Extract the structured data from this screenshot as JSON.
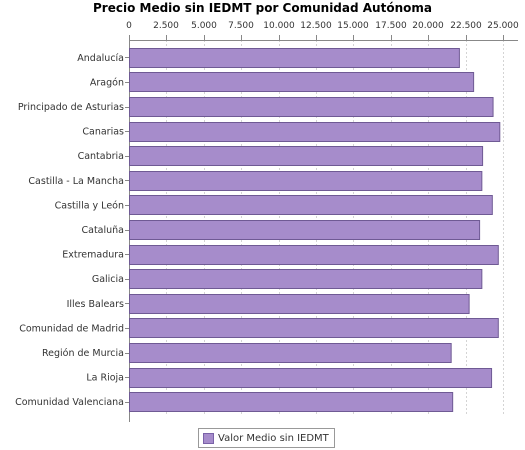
{
  "colors": {
    "bar_fill": "#a68ccb",
    "bar_stroke": "#6f5a94",
    "grid": "#d4d4d4",
    "axis": "#888888"
  },
  "chart_data": {
    "type": "bar",
    "orientation": "horizontal",
    "title": "Precio Medio sin IEDMT por Comunidad Autónoma",
    "xlabel": "",
    "ylabel": "",
    "xlim": [
      0,
      26000
    ],
    "x_ticks": [
      0,
      2500,
      5000,
      7500,
      10000,
      12500,
      15000,
      17500,
      20000,
      22500,
      25000
    ],
    "x_tick_labels": [
      "0",
      "2.500",
      "5.000",
      "7.500",
      "10.000",
      "12.500",
      "15.000",
      "17.500",
      "20.000",
      "22.500",
      "25.000"
    ],
    "x_axis_position": "top",
    "grid": true,
    "legend_position": "bottom",
    "categories": [
      "Andalucía",
      "Aragón",
      "Principado de Asturias",
      "Canarias",
      "Cantabria",
      "Castilla - La Mancha",
      "Castilla y León",
      "Cataluña",
      "Extremadura",
      "Galicia",
      "Illes Balears",
      "Comunidad de Madrid",
      "Región de Murcia",
      "La Rioja",
      "Comunidad Valenciana"
    ],
    "series": [
      {
        "name": "Valor Medio sin IEDMT",
        "values": [
          22050,
          23000,
          24300,
          24750,
          23600,
          23550,
          24250,
          23400,
          24650,
          23550,
          22700,
          24650,
          21500,
          24200,
          21600
        ]
      }
    ]
  }
}
